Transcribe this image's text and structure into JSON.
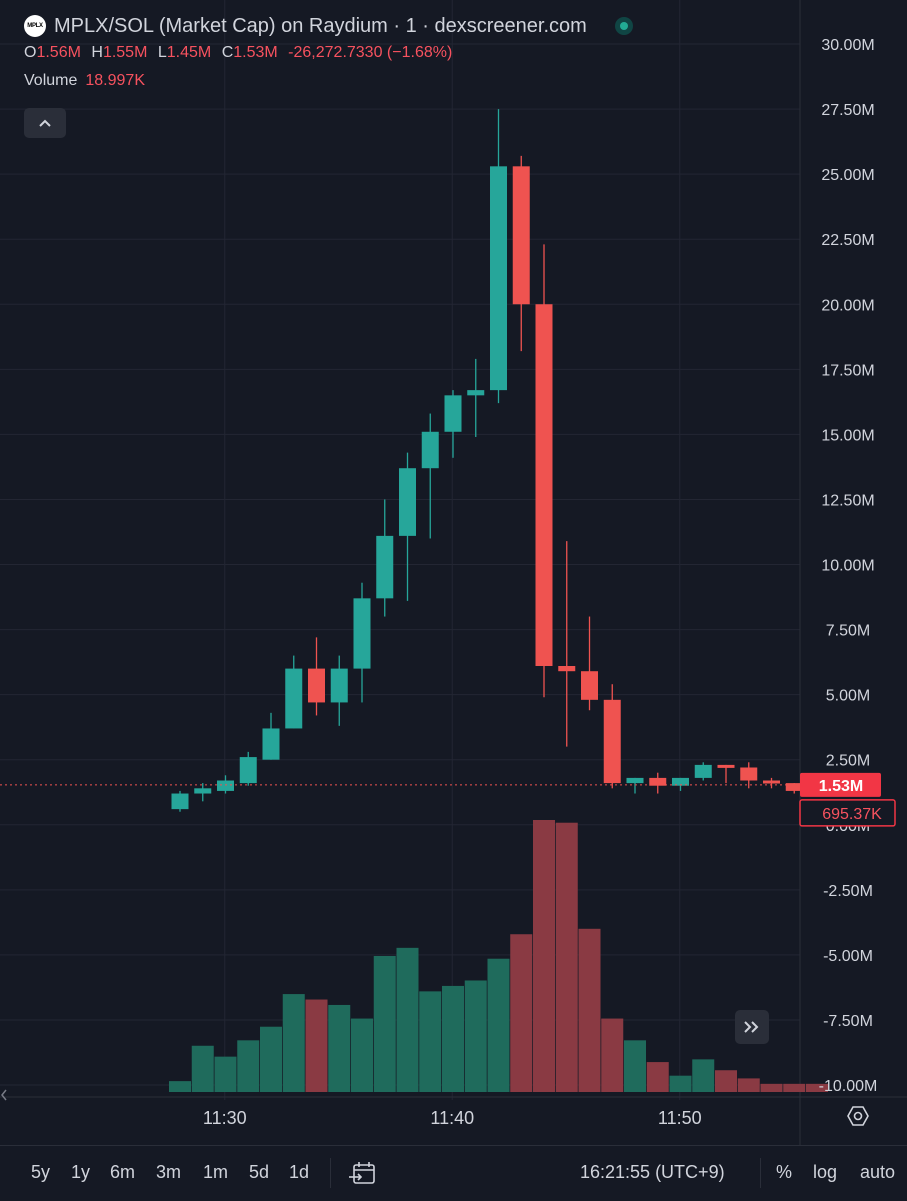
{
  "window_title": "MPLX/SOL (Market Cap) on Raydium · 1 · dexscreener.com",
  "logo_text": "MPLX",
  "ohlc": {
    "o_label": "O",
    "o_value": "1.56M",
    "h_label": "H",
    "h_value": "1.55M",
    "l_label": "L",
    "l_value": "1.45M",
    "c_label": "C",
    "c_value": "1.53M",
    "change": "-26,272.7330 (−1.68%)"
  },
  "volume": {
    "label": "Volume",
    "value": "18.997K"
  },
  "colors": {
    "up": "#26a69a",
    "down": "#ef5350",
    "vol_up": "#1f6b5c",
    "vol_down": "#8a3a43",
    "background": "#151924",
    "grid": "#232633"
  },
  "price_labels": [
    "30.00M",
    "27.50M",
    "25.00M",
    "22.50M",
    "20.00M",
    "17.50M",
    "15.00M",
    "12.50M",
    "10.00M",
    "7.50M",
    "5.00M",
    "2.50M",
    "0.00M",
    "-2.50M",
    "-5.00M",
    "-7.50M",
    "-10.00M"
  ],
  "current_price_badge": "1.53M",
  "countdown_badge": "695.37K",
  "time_labels": [
    "11:30",
    "11:40",
    "11:50"
  ],
  "timeframes": [
    "5y",
    "1y",
    "6m",
    "3m",
    "1m",
    "5d",
    "1d"
  ],
  "clock": "16:21:55 (UTC+9)",
  "scale_options": [
    "%",
    "log",
    "auto"
  ],
  "icons": [
    "collapse-icon",
    "scroll-right-icon",
    "settings-icon",
    "date-range-icon",
    "live-indicator-icon"
  ],
  "chart_data": {
    "type": "candlestick",
    "interval": "1m",
    "y_unit": "M",
    "ylim": [
      -10,
      30
    ],
    "x": [
      "11:29",
      "11:30",
      "11:31",
      "11:32",
      "11:33",
      "11:34",
      "11:35",
      "11:36",
      "11:37",
      "11:38",
      "11:39",
      "11:40",
      "11:41",
      "11:42",
      "11:43",
      "11:44",
      "11:45",
      "11:46",
      "11:47",
      "11:48",
      "11:49",
      "11:50",
      "11:51",
      "11:52",
      "11:53",
      "11:54",
      "11:55",
      "11:56",
      "11:57"
    ],
    "ohlc": [
      [
        0.6,
        1.3,
        0.5,
        1.2
      ],
      [
        1.2,
        1.6,
        0.9,
        1.4
      ],
      [
        1.3,
        1.9,
        1.2,
        1.7
      ],
      [
        1.6,
        2.8,
        1.5,
        2.6
      ],
      [
        2.5,
        4.3,
        2.5,
        3.7
      ],
      [
        3.7,
        6.5,
        3.7,
        6.0
      ],
      [
        6.0,
        7.2,
        4.2,
        4.7
      ],
      [
        4.7,
        6.5,
        3.8,
        6.0
      ],
      [
        6.0,
        9.3,
        4.7,
        8.7
      ],
      [
        8.7,
        12.5,
        8.0,
        11.1
      ],
      [
        11.1,
        14.3,
        8.6,
        13.7
      ],
      [
        13.7,
        15.8,
        11.0,
        15.1
      ],
      [
        15.1,
        16.7,
        14.1,
        16.5
      ],
      [
        16.5,
        17.9,
        14.9,
        16.7
      ],
      [
        16.7,
        27.5,
        16.2,
        25.3
      ],
      [
        25.3,
        25.7,
        18.2,
        20.0
      ],
      [
        20.0,
        22.3,
        4.9,
        6.1
      ],
      [
        6.1,
        10.9,
        3.0,
        5.9
      ],
      [
        5.9,
        8.0,
        4.4,
        4.8
      ],
      [
        4.8,
        5.4,
        1.4,
        1.6
      ],
      [
        1.6,
        1.8,
        1.2,
        1.8
      ],
      [
        1.8,
        2.0,
        1.2,
        1.5
      ],
      [
        1.5,
        1.8,
        1.3,
        1.8
      ],
      [
        1.8,
        2.4,
        1.7,
        2.3
      ],
      [
        2.3,
        2.3,
        1.6,
        2.2
      ],
      [
        2.2,
        2.4,
        1.4,
        1.7
      ],
      [
        1.7,
        1.8,
        1.4,
        1.6
      ],
      [
        1.6,
        1.6,
        1.2,
        1.3
      ],
      [
        1.56,
        1.55,
        1.45,
        1.53
      ]
    ],
    "volume_level": [
      0.04,
      0.17,
      0.13,
      0.19,
      0.24,
      0.36,
      0.34,
      0.32,
      0.27,
      0.5,
      0.53,
      0.37,
      0.39,
      0.41,
      0.49,
      0.58,
      1.0,
      0.99,
      0.6,
      0.27,
      0.19,
      0.11,
      0.06,
      0.12,
      0.08,
      0.05,
      0.03,
      0.03,
      0.03
    ]
  }
}
